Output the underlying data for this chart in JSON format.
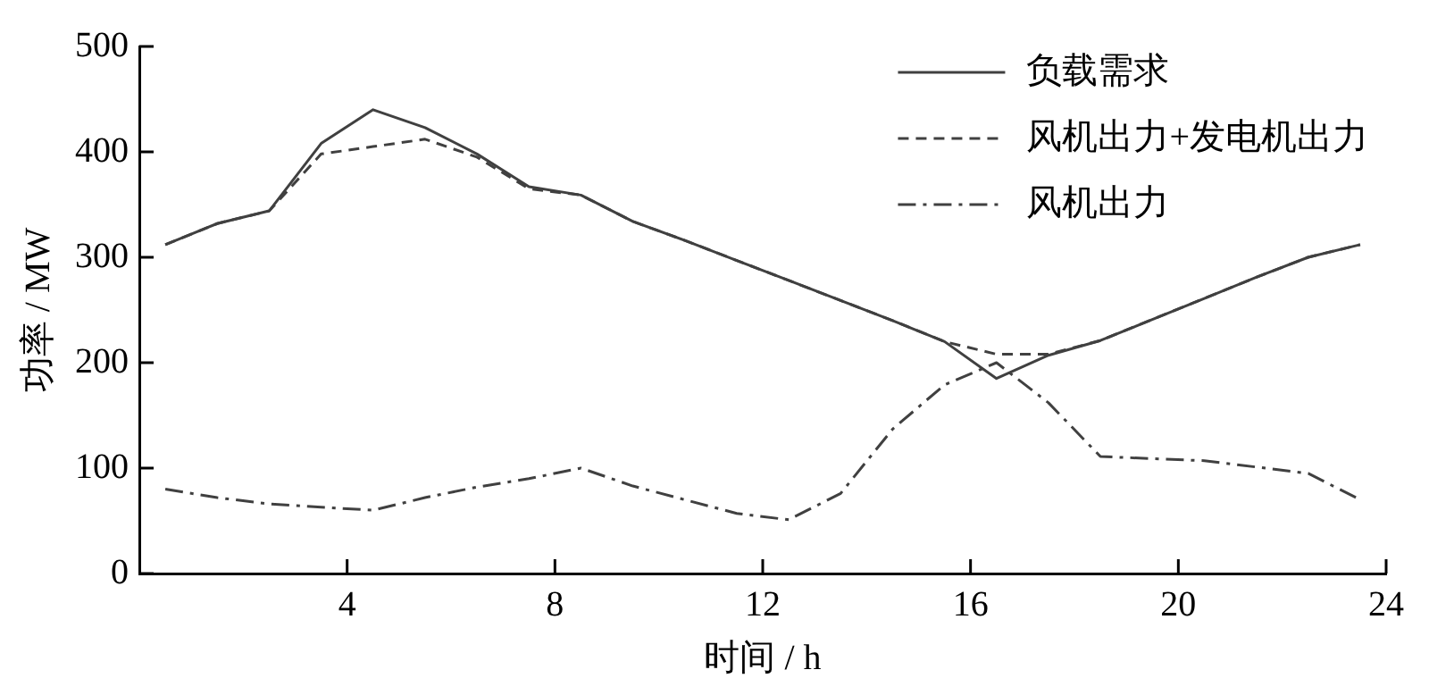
{
  "chart_data": {
    "type": "line",
    "xlabel": "时间 / h",
    "ylabel": "功率 / MW",
    "xlim": [
      0,
      24
    ],
    "xticks": [
      4,
      8,
      12,
      16,
      20,
      24
    ],
    "ylim": [
      0,
      500
    ],
    "yticks": [
      0,
      100,
      200,
      300,
      400,
      500
    ],
    "grid": false,
    "legend": "top right",
    "marker": "none",
    "x": [
      0.5,
      1.5,
      2.5,
      3.5,
      4.5,
      5.5,
      6.5,
      7.5,
      8.5,
      9.5,
      10.5,
      11.5,
      12.5,
      13.5,
      14.5,
      15.5,
      16.5,
      17.5,
      18.5,
      19.5,
      20.5,
      21.5,
      22.5,
      23.5
    ],
    "series": [
      {
        "name": "负载需求",
        "color": "#404040",
        "line_style": "solid",
        "values": [
          312,
          332,
          344,
          408,
          440,
          423,
          398,
          367,
          359,
          334,
          316,
          297,
          278,
          259,
          240,
          220,
          185,
          207,
          221,
          241,
          261,
          281,
          300,
          312
        ]
      },
      {
        "name": "风机出力+发电机出力",
        "color": "#404040",
        "line_style": "dashed",
        "values": [
          312,
          332,
          344,
          398,
          405,
          412,
          395,
          365,
          359,
          334,
          316,
          297,
          278,
          259,
          240,
          220,
          208,
          208,
          221,
          241,
          261,
          281,
          300,
          312
        ]
      },
      {
        "name": "风机出力",
        "color": "#404040",
        "line_style": "dashdot",
        "values": [
          80,
          72,
          66,
          63,
          60,
          72,
          82,
          90,
          100,
          83,
          70,
          57,
          51,
          76,
          137,
          179,
          200,
          162,
          111,
          109,
          107,
          101,
          95,
          70
        ]
      }
    ]
  }
}
